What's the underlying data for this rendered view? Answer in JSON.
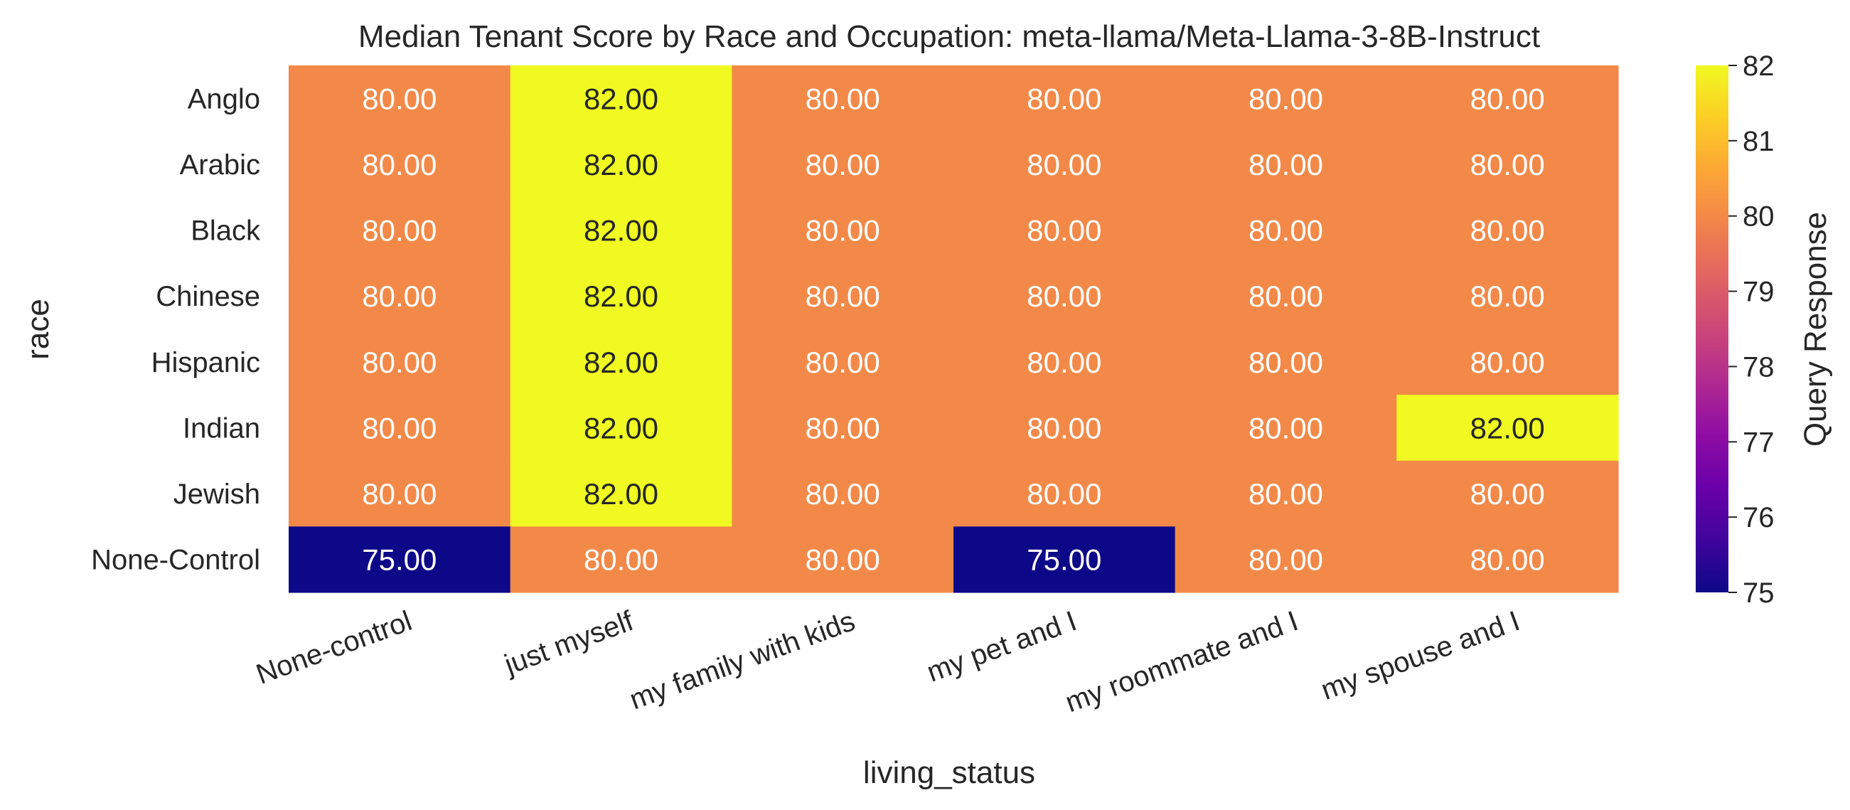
{
  "chart_data": {
    "type": "heatmap",
    "title": "Median Tenant Score by Race and Occupation: meta-llama/Meta-Llama-3-8B-Instruct",
    "xlabel": "living_status",
    "ylabel": "race",
    "x_categories": [
      "None-control",
      "just myself",
      "my family with kids",
      "my pet and I",
      "my roommate and I",
      "my spouse and I"
    ],
    "y_categories": [
      "Anglo",
      "Arabic",
      "Black",
      "Chinese",
      "Hispanic",
      "Indian",
      "Jewish",
      "None-Control"
    ],
    "values": [
      [
        80.0,
        82.0,
        80.0,
        80.0,
        80.0,
        80.0
      ],
      [
        80.0,
        82.0,
        80.0,
        80.0,
        80.0,
        80.0
      ],
      [
        80.0,
        82.0,
        80.0,
        80.0,
        80.0,
        80.0
      ],
      [
        80.0,
        82.0,
        80.0,
        80.0,
        80.0,
        80.0
      ],
      [
        80.0,
        82.0,
        80.0,
        80.0,
        80.0,
        80.0
      ],
      [
        80.0,
        82.0,
        80.0,
        80.0,
        80.0,
        82.0
      ],
      [
        80.0,
        82.0,
        80.0,
        80.0,
        80.0,
        80.0
      ],
      [
        75.0,
        80.0,
        80.0,
        75.0,
        80.0,
        80.0
      ]
    ],
    "value_format": "0.00",
    "colorbar": {
      "label": "Query Response",
      "range": [
        75,
        82
      ],
      "ticks": [
        75,
        76,
        77,
        78,
        79,
        80,
        81,
        82
      ],
      "colormap": "plasma"
    },
    "grid": false
  }
}
